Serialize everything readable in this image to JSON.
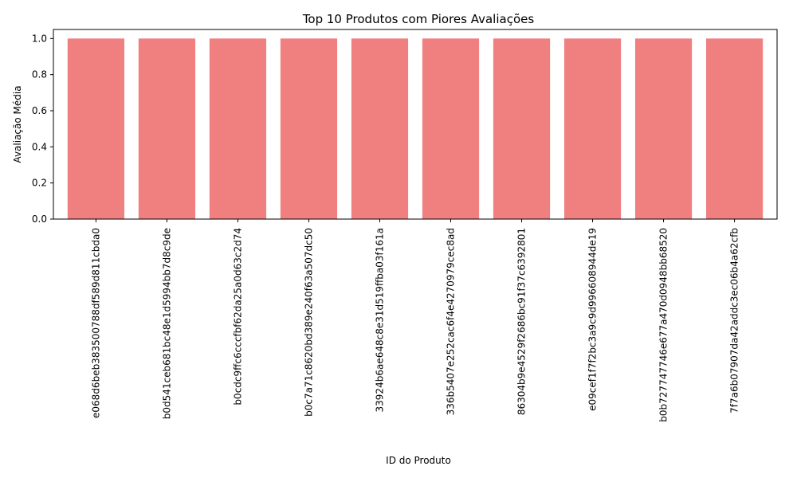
{
  "chart_data": {
    "type": "bar",
    "title": "Top 10 Produtos com Piores Avaliações",
    "xlabel": "ID do Produto",
    "ylabel": "Avaliação Média",
    "ylim": [
      0,
      1.05
    ],
    "yticks": [
      "0.0",
      "0.2",
      "0.4",
      "0.6",
      "0.8",
      "1.0"
    ],
    "categories": [
      "e068d6beb383500788df589d811cbda0",
      "b0d541ceb681bc48e1d5994bb7d8c9de",
      "b0cdc9ffc6cccfbf62da25a0d63c2d74",
      "b0c7a71c8620bd389e240f63a507dc50",
      "33924b6ae648c8e31d519ffba03f161a",
      "336b5407e252cac6f4e4270979cec8ad",
      "86304b9e4529f2686bc91f37c6392801",
      "e09cef1f7f2bc3a9c9d996608944de19",
      "b0b727747746e677a470d0948bb68520",
      "7f7a6b07907da42addc3ec06b4a62cfb"
    ],
    "values": [
      1.0,
      1.0,
      1.0,
      1.0,
      1.0,
      1.0,
      1.0,
      1.0,
      1.0,
      1.0
    ],
    "bar_color": "#f08080",
    "grid": false,
    "legend": "none"
  }
}
